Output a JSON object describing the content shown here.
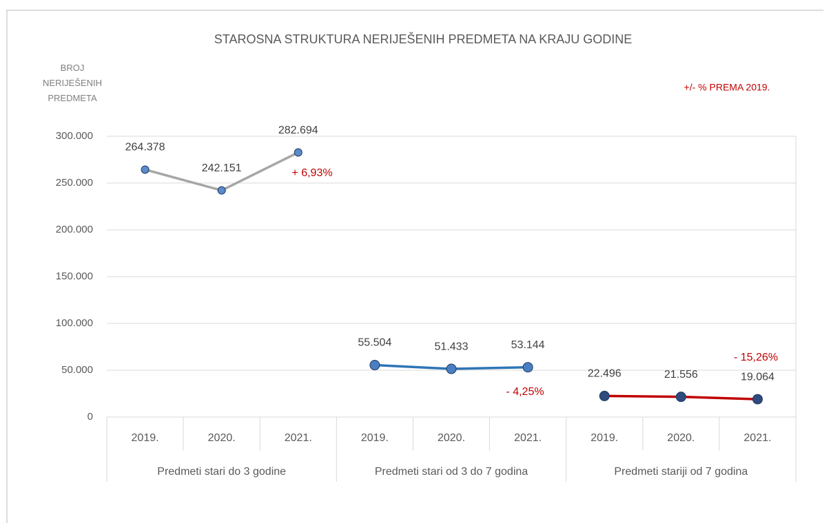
{
  "chart_data": {
    "type": "line",
    "title": "STAROSNA STRUKTURA NERIJEŠENIH PREDMETA NA KRAJU GODINE",
    "y_label": "BROJ NERIJEŠENIH PREDMETA",
    "categories": [
      "2019.",
      "2020.",
      "2021.",
      "2019.",
      "2020.",
      "2021.",
      "2019.",
      "2020.",
      "2021."
    ],
    "groups": [
      "Predmeti stari do 3 godine",
      "Predmeti stari od 3 do 7 godina",
      "Predmeti stariji od 7 godina"
    ],
    "series": [
      {
        "color": "#a6a6a6",
        "marker_color": "#5b8bc9",
        "values": [
          264378,
          242151,
          282694,
          null,
          null,
          null,
          null,
          null,
          null
        ],
        "value_labels": [
          "264.378",
          "242.151",
          "282.694",
          null,
          null,
          null,
          null,
          null,
          null
        ]
      },
      {
        "color": "#2e75b6",
        "marker_color": "#4a7fc1",
        "values": [
          null,
          null,
          null,
          55504,
          51433,
          53144,
          null,
          null,
          null
        ],
        "value_labels": [
          null,
          null,
          null,
          "55.504",
          "51.433",
          "53.144",
          null,
          null,
          null
        ]
      },
      {
        "color": "#c00000",
        "marker_color": "#2f4a7d",
        "values": [
          null,
          null,
          null,
          null,
          null,
          null,
          22496,
          21556,
          19064
        ],
        "value_labels": [
          null,
          null,
          null,
          null,
          null,
          null,
          "22.496",
          "21.556",
          "19.064"
        ]
      }
    ],
    "annotations": [
      "+/- % PREMA 2019.",
      "+ 6,93%",
      "- 4,25%",
      "- 15,26%"
    ],
    "ylim": [
      0,
      300000
    ],
    "yticks": [
      0,
      {
        "value": 50000,
        "label": "50.000"
      },
      {
        "value": 100000,
        "label": "100.000"
      },
      {
        "value": 150000,
        "label": "150.000"
      },
      {
        "value": 200000,
        "label": "200.000"
      },
      {
        "value": 250000,
        "label": "250.000"
      },
      {
        "value": 300000,
        "label": "300.000"
      }
    ],
    "grid": true
  }
}
